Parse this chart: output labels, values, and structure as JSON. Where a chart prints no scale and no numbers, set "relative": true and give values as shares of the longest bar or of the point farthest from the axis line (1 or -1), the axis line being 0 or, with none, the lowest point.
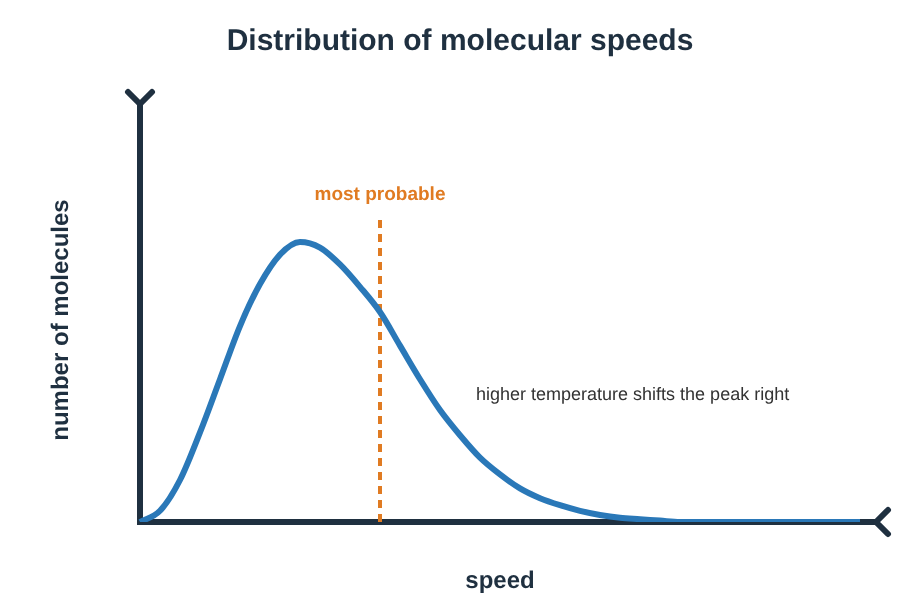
{
  "chart_data": {
    "type": "line",
    "title": "Distribution of molecular speeds",
    "xlabel": "speed",
    "ylabel": "number of molecules",
    "relative": true,
    "categories": [
      null,
      null,
      null,
      null,
      null,
      null,
      null,
      null,
      null,
      null,
      null,
      null,
      null,
      null,
      null,
      null,
      null,
      null,
      null,
      null,
      null,
      null,
      null,
      null,
      null,
      null,
      null,
      null,
      null,
      null,
      null,
      null,
      null,
      null,
      null,
      null,
      null
    ],
    "series": [
      {
        "color": "#2a78b8",
        "values": [
          0,
          0.04,
          0.15,
          0.32,
          0.51,
          0.7,
          0.85,
          0.955,
          1,
          0.98,
          0.92,
          0.84,
          0.75,
          0.63,
          0.51,
          0.4,
          0.31,
          0.23,
          0.17,
          0.12,
          0.085,
          0.06,
          0.04,
          0.025,
          0.015,
          0.01,
          0.005,
          0,
          0,
          0,
          0,
          0,
          0,
          0,
          0,
          0,
          0
        ]
      }
    ],
    "annotations": [
      "most probable",
      "higher temperature shifts the peak right"
    ]
  }
}
